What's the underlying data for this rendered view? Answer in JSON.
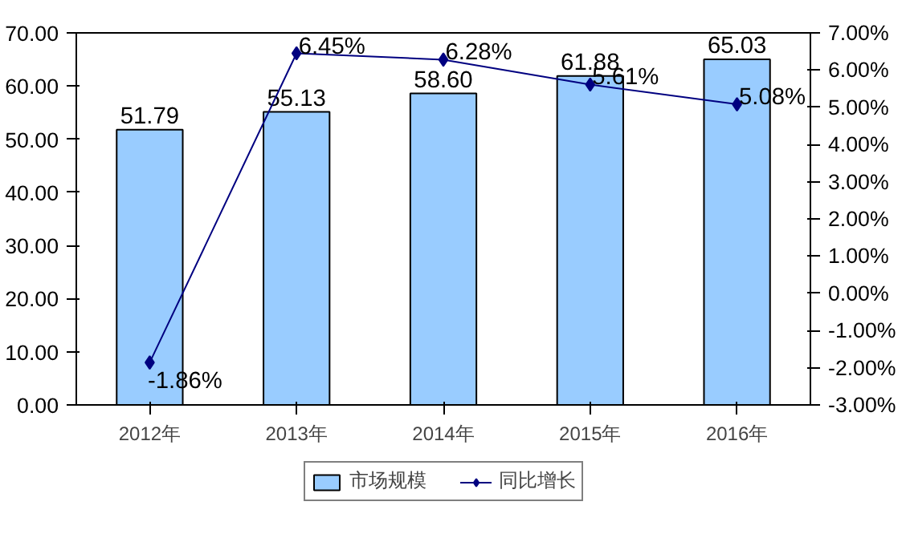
{
  "chart_data": {
    "type": "bar",
    "categories": [
      "2012年",
      "2013年",
      "2014年",
      "2015年",
      "2016年"
    ],
    "series": [
      {
        "name": "市场规模",
        "color": "#99ccff",
        "values": [
          51.79,
          55.13,
          58.6,
          61.88,
          65.03
        ],
        "value_labels": [
          "51.79",
          "55.13",
          "58.60",
          "61.88",
          "65.03"
        ]
      },
      {
        "name": "同比增长",
        "type": "line",
        "axis": "y2",
        "color": "#000080",
        "marker": "diamond",
        "values": [
          -1.86,
          6.45,
          6.28,
          5.61,
          5.08
        ],
        "value_labels": [
          "-1.86%",
          "6.45%",
          "6.28%",
          "5.61%",
          "5.08%"
        ]
      }
    ],
    "ylim": [
      0,
      70
    ],
    "yticks": [
      {
        "value": 0,
        "label": "0.00"
      },
      {
        "value": 10,
        "label": "10.00"
      },
      {
        "value": 20,
        "label": "20.00"
      },
      {
        "value": 30,
        "label": "30.00"
      },
      {
        "value": 40,
        "label": "40.00"
      },
      {
        "value": 50,
        "label": "50.00"
      },
      {
        "value": 60,
        "label": "60.00"
      },
      {
        "value": 70,
        "label": "70.00"
      }
    ],
    "y2lim": [
      -3,
      7
    ],
    "y2ticks": [
      {
        "value": -3,
        "label": "-3.00%"
      },
      {
        "value": -2,
        "label": "-2.00%"
      },
      {
        "value": -1,
        "label": "-1.00%"
      },
      {
        "value": 0,
        "label": "0.00%"
      },
      {
        "value": 1,
        "label": "1.00%"
      },
      {
        "value": 2,
        "label": "2.00%"
      },
      {
        "value": 3,
        "label": "3.00%"
      },
      {
        "value": 4,
        "label": "4.00%"
      },
      {
        "value": 5,
        "label": "5.00%"
      },
      {
        "value": 6,
        "label": "6.00%"
      },
      {
        "value": 7,
        "label": "7.00%"
      }
    ],
    "grid": false,
    "legend": "bottom"
  }
}
